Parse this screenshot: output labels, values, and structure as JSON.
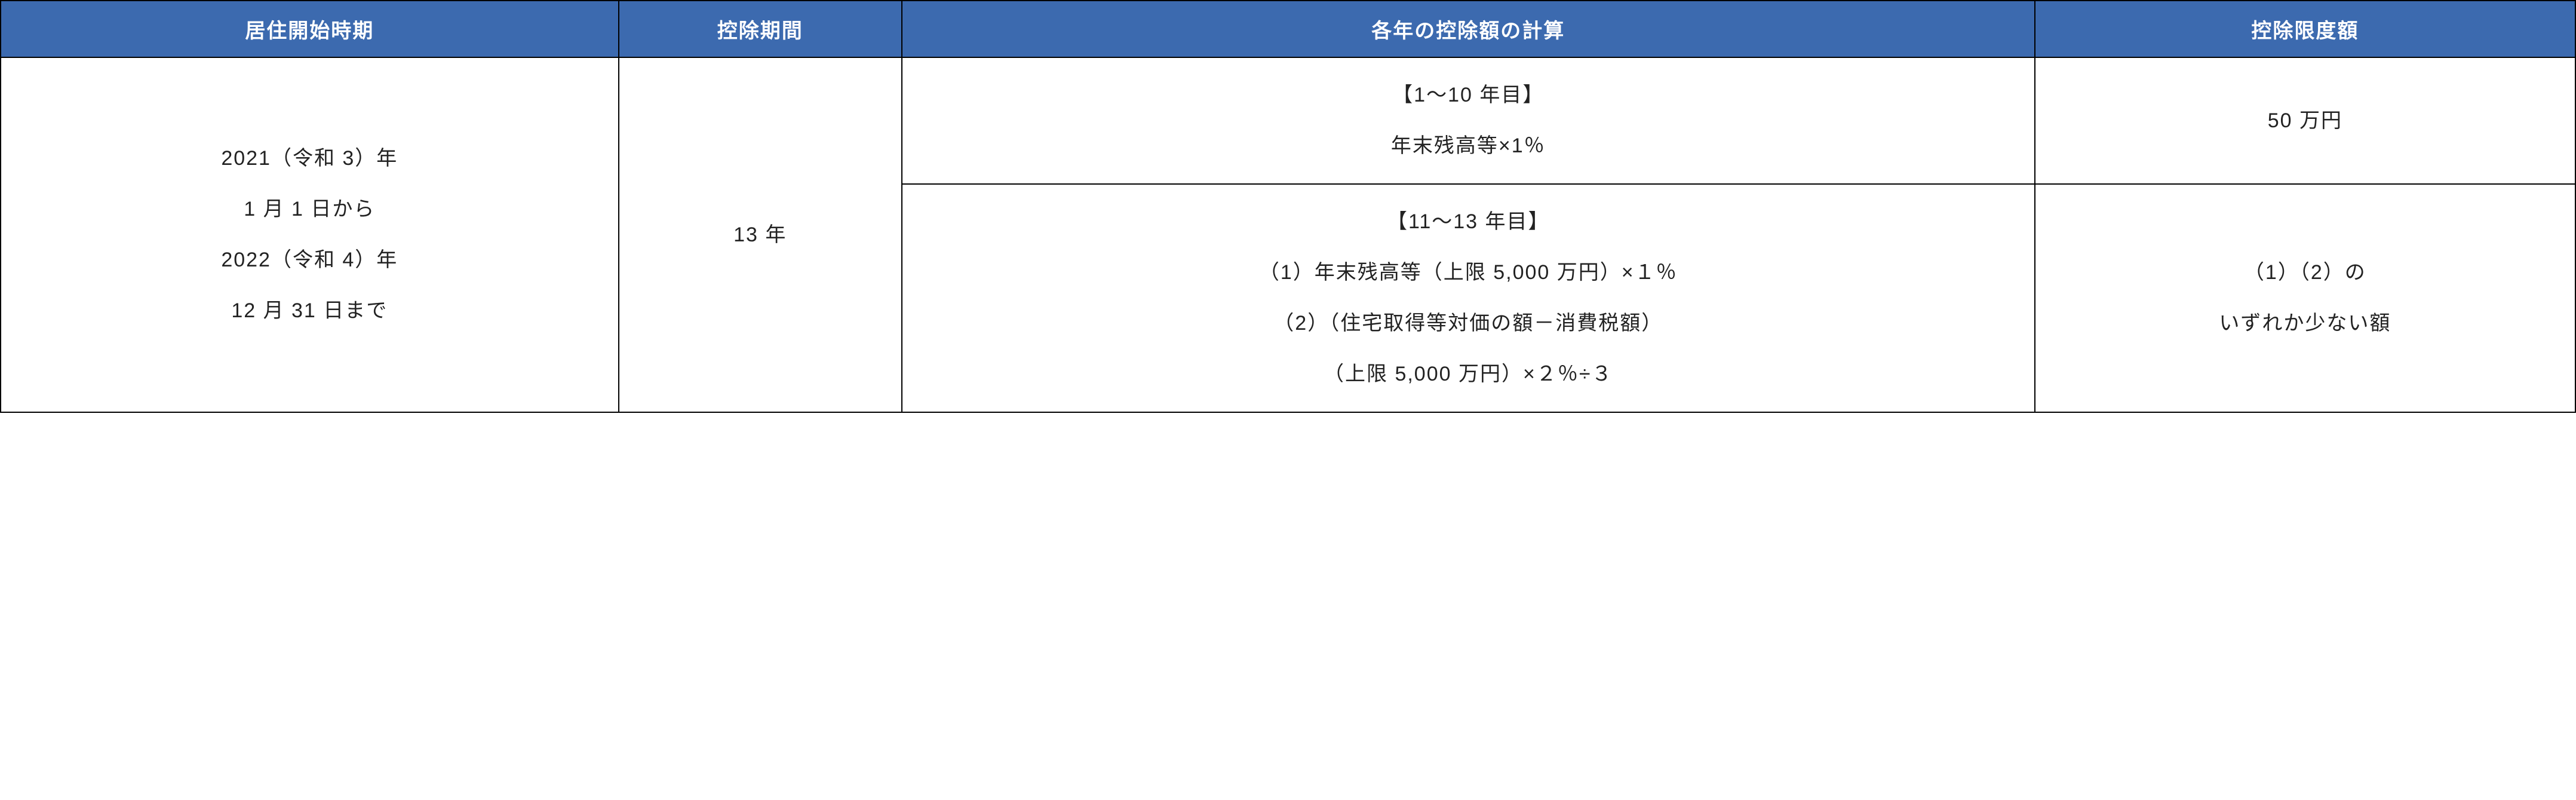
{
  "table": {
    "header_bg": "#3c6aaf",
    "header_fg": "#ffffff",
    "border_color": "#000000",
    "cell_fg": "#222222",
    "font_size_header": 34,
    "font_size_cell": 34,
    "columns": [
      {
        "label": "居住開始時期",
        "width_pct": 24
      },
      {
        "label": "控除期間",
        "width_pct": 11
      },
      {
        "label": "各年の控除額の計算",
        "width_pct": 44
      },
      {
        "label": "控除限度額",
        "width_pct": 21
      }
    ],
    "cells": {
      "period": "2021（令和 3）年\n1 月 1 日から\n2022（令和 4）年\n12 月 31 日まで",
      "deduction_period": "13 年",
      "calc_1": "【1～10 年目】\n年末残高等×1％",
      "limit_1": "50 万円",
      "calc_2": "【11～13 年目】\n（1）年末残高等（上限 5,000 万円）×１％\n（2）（住宅取得等対価の額－消費税額）\n（上限 5,000 万円）×２％÷３",
      "limit_2": "（1）（2）の\nいずれか少ない額"
    }
  }
}
